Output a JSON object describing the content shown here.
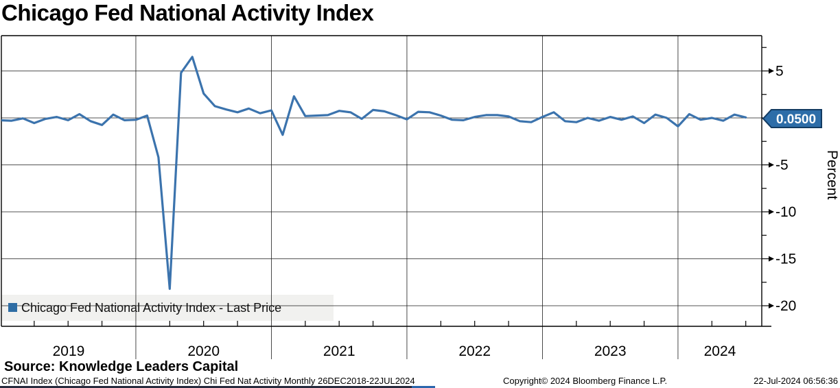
{
  "title": "Chicago Fed National Activity Index",
  "chart_data": {
    "type": "line",
    "title": "Chicago Fed National Activity Index",
    "series": [
      {
        "name": "Chicago Fed National Activity Index - Last Price",
        "color": "#3b73ad",
        "values": [
          -0.1,
          -0.25,
          -0.3,
          -0.05,
          -0.55,
          -0.1,
          0.1,
          -0.25,
          0.4,
          -0.35,
          -0.75,
          0.35,
          -0.25,
          -0.2,
          0.25,
          -4.2,
          -18.2,
          4.8,
          6.5,
          2.6,
          1.25,
          0.9,
          0.6,
          1.0,
          0.5,
          0.8,
          -1.8,
          2.3,
          0.2,
          0.25,
          0.3,
          0.75,
          0.6,
          -0.1,
          0.85,
          0.7,
          0.3,
          -0.15,
          0.65,
          0.6,
          0.25,
          -0.2,
          -0.25,
          0.1,
          0.3,
          0.3,
          0.15,
          -0.35,
          -0.45,
          0.1,
          0.6,
          -0.35,
          -0.45,
          0.0,
          -0.3,
          0.1,
          -0.2,
          0.15,
          -0.55,
          0.35,
          0.0,
          -0.9,
          0.4,
          -0.2,
          0.0,
          -0.3,
          0.35,
          0.05
        ]
      }
    ],
    "x_monthly": [
      "2018-12",
      "2019-01",
      "2019-02",
      "2019-03",
      "2019-04",
      "2019-05",
      "2019-06",
      "2019-07",
      "2019-08",
      "2019-09",
      "2019-10",
      "2019-11",
      "2019-12",
      "2020-01",
      "2020-02",
      "2020-03",
      "2020-04",
      "2020-05",
      "2020-06",
      "2020-07",
      "2020-08",
      "2020-09",
      "2020-10",
      "2020-11",
      "2020-12",
      "2021-01",
      "2021-02",
      "2021-03",
      "2021-04",
      "2021-05",
      "2021-06",
      "2021-07",
      "2021-08",
      "2021-09",
      "2021-10",
      "2021-11",
      "2021-12",
      "2022-01",
      "2022-02",
      "2022-03",
      "2022-04",
      "2022-05",
      "2022-06",
      "2022-07",
      "2022-08",
      "2022-09",
      "2022-10",
      "2022-11",
      "2022-12",
      "2023-01",
      "2023-02",
      "2023-03",
      "2023-04",
      "2023-05",
      "2023-06",
      "2023-07",
      "2023-08",
      "2023-09",
      "2023-10",
      "2023-11",
      "2023-12",
      "2024-01",
      "2024-02",
      "2024-03",
      "2024-04",
      "2024-05",
      "2024-06",
      "2024-07"
    ],
    "x_tick_years": [
      "2019",
      "2020",
      "2021",
      "2022",
      "2023",
      "2024"
    ],
    "y_ticks_major": [
      5,
      0,
      -5,
      -10,
      -15,
      -20
    ],
    "y_ticks_minor": [
      7.5,
      2.5,
      -2.5,
      -7.5,
      -12.5,
      -17.5
    ],
    "ylim": [
      -22.2,
      8.8
    ],
    "ylabel": "Percent",
    "grid": true,
    "legend_position": "bottom-left",
    "last_price": "0.0500",
    "date_range": "26DEC2018-22JUL2024",
    "frequency": "Monthly"
  },
  "badge": {
    "value": "0.0500"
  },
  "legend": {
    "label": "Chicago Fed National Activity Index - Last Price"
  },
  "footer": {
    "source": "Source: Knowledge Leaders Capital",
    "description": "CFNAI Index (Chicago Fed National Activity Index) Chi Fed Nat Activity  Monthly 26DEC2018-22JUL2024",
    "copyright": "Copyright© 2024 Bloomberg Finance L.P.",
    "timestamp": "22-Jul-2024 06:56:36"
  },
  "colors": {
    "line": "#3b73ad",
    "badge_fill": "#2d6da8",
    "badge_border": "#123a61",
    "legend_swatch": "#2e6da4",
    "legend_bg": "#f1f1ef",
    "grid": "#1a1a1a",
    "stripe_dark": "#262b3e",
    "stripe_blue": "#2b66ad"
  }
}
